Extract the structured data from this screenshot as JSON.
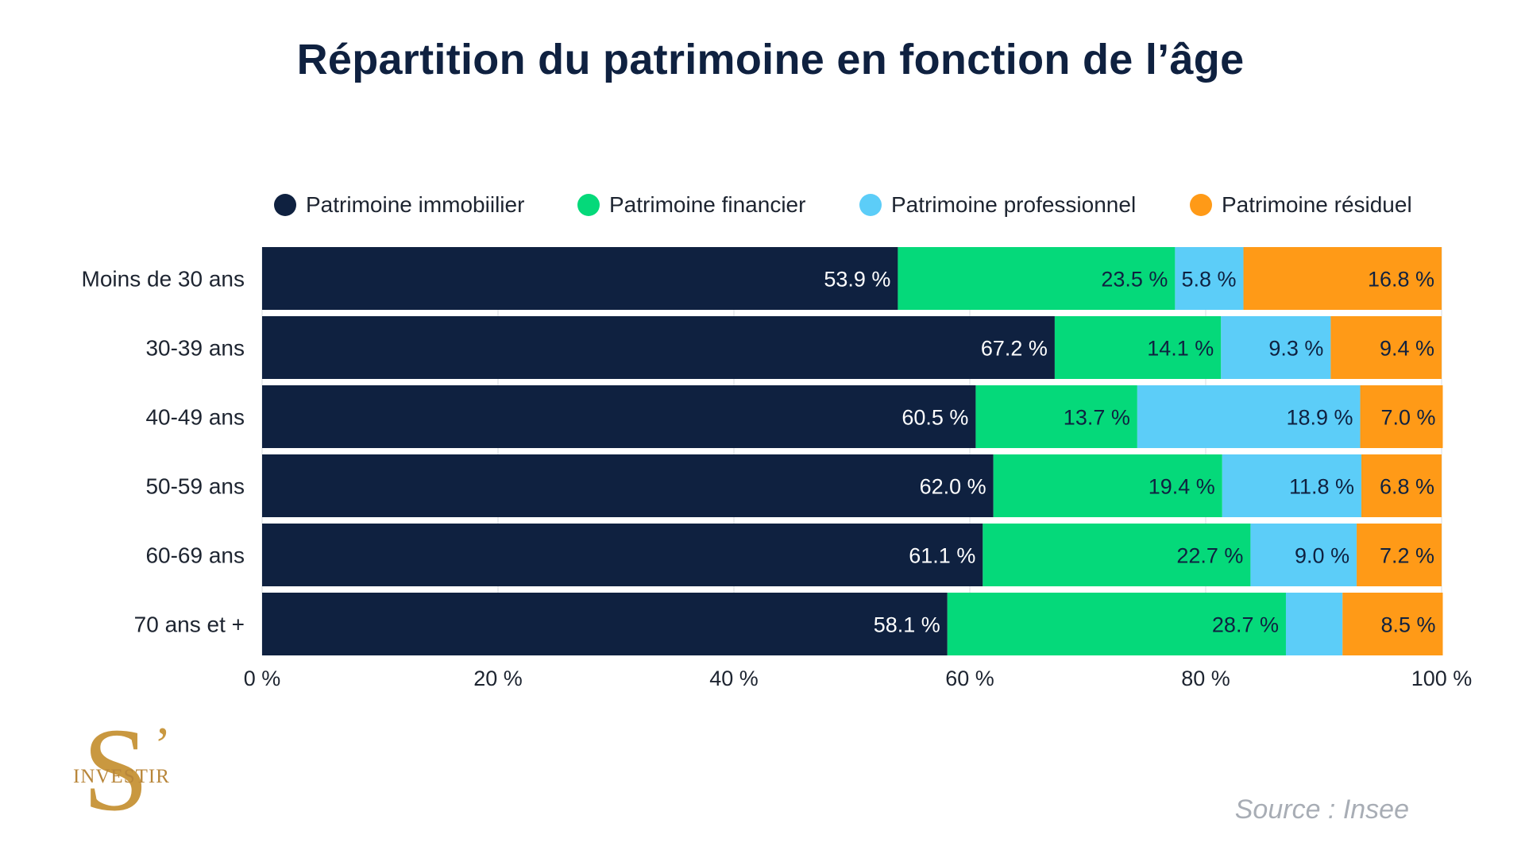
{
  "chart_data": {
    "type": "bar",
    "orientation": "horizontal",
    "stacked": true,
    "title": "Répartition du patrimoine en fonction de l’âge",
    "categories": [
      "Moins de 30 ans",
      "30-39 ans",
      "40-49 ans",
      "50-59 ans",
      "60-69 ans",
      "70 ans et +"
    ],
    "series": [
      {
        "name": "Patrimoine immobiilier",
        "color": "#0f2140",
        "label_color": "#ffffff",
        "values": [
          53.9,
          67.2,
          60.5,
          62.0,
          61.1,
          58.1
        ],
        "labels": [
          "53.9 %",
          "67.2 %",
          "60.5 %",
          "62.0 %",
          "61.1 %",
          "58.1 %"
        ]
      },
      {
        "name": "Patrimoine financier",
        "color": "#05d97a",
        "label_color": "#0f2140",
        "values": [
          23.5,
          14.1,
          13.7,
          19.4,
          22.7,
          28.7
        ],
        "labels": [
          "23.5 %",
          "14.1 %",
          "13.7 %",
          "19.4 %",
          "22.7 %",
          "28.7 %"
        ]
      },
      {
        "name": "Patrimoine professionnel",
        "color": "#5ccdf8",
        "label_color": "#0f2140",
        "values": [
          5.8,
          9.3,
          18.9,
          11.8,
          9.0,
          4.8
        ],
        "labels": [
          "5.8 %",
          "9.3 %",
          "18.9 %",
          "11.8 %",
          "9.0 %",
          ""
        ]
      },
      {
        "name": "Patrimoine résiduel",
        "color": "#ff9a17",
        "label_color": "#0f2140",
        "values": [
          16.8,
          9.4,
          7.0,
          6.8,
          7.2,
          8.5
        ],
        "labels": [
          "16.8 %",
          "9.4 %",
          "7.0 %",
          "6.8 %",
          "7.2 %",
          "8.5 %"
        ]
      }
    ],
    "xlim": [
      0,
      100
    ],
    "xticks": [
      0,
      20,
      40,
      60,
      80,
      100
    ],
    "xtick_labels": [
      "0 %",
      "20 %",
      "40 %",
      "60 %",
      "80 %",
      "100 %"
    ],
    "xlabel": "",
    "ylabel": "",
    "legend": "top",
    "grid": true
  },
  "source": "Source : Insee",
  "logo": {
    "letter": "S",
    "apostrophe": "’",
    "text": "INVESTIR",
    "color": "#c99840"
  }
}
